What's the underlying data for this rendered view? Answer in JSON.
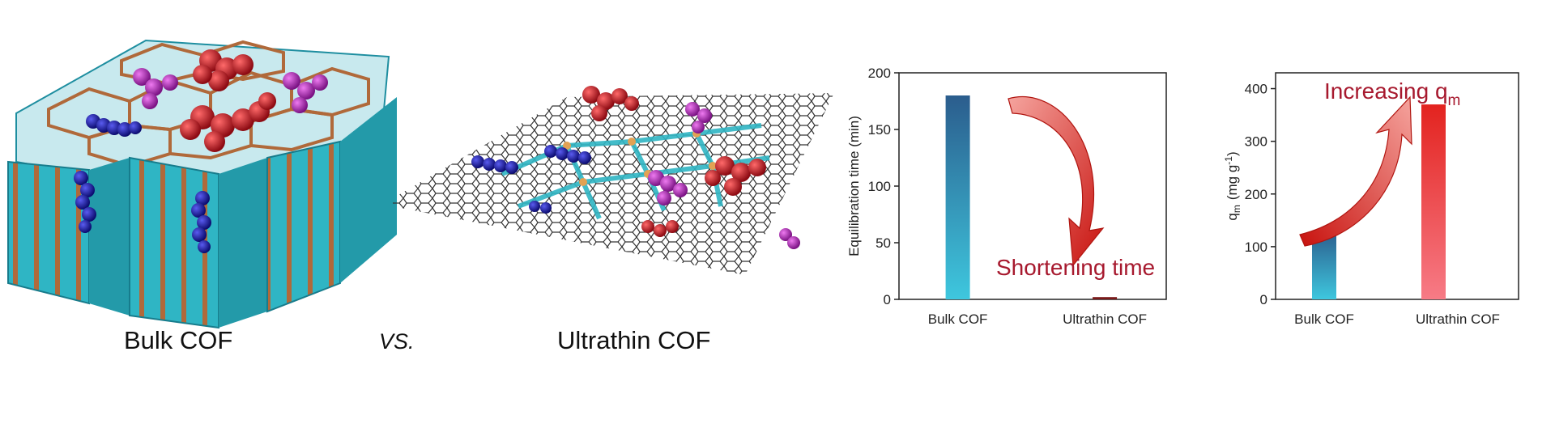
{
  "captions": {
    "bulk": "Bulk COF",
    "vs": "VS.",
    "ultrathin": "Ultrathin COF"
  },
  "colors": {
    "wall_cyan": "#2fb5c4",
    "wall_brown": "#b0693a",
    "sphere_red": "#b3121c",
    "sphere_purple": "#a11ea5",
    "sphere_blue": "#15159a",
    "arrow_red": "#d2231c",
    "annotation_text": "#a7192e",
    "bar_blue_top": "#2b5d8d",
    "bar_blue_bottom": "#3ec7de",
    "bar_red_top": "#e3231f",
    "bar_red_bottom": "#f77b86"
  },
  "icons": [
    "bulk-cof-structure-illustration",
    "ultrathin-cof-sheet-illustration",
    "curved-arrow"
  ],
  "chart_data": [
    {
      "type": "bar",
      "categories": [
        "Bulk COF",
        "Ultrathin COF"
      ],
      "values": [
        180,
        2
      ],
      "ylabel": "Equilibration time (min)",
      "xlabel": "",
      "ylim": [
        0,
        200
      ],
      "yticks": [
        0,
        50,
        100,
        150,
        200
      ],
      "annotation": "Shortening time",
      "arrow": "down"
    },
    {
      "type": "bar",
      "categories": [
        "Bulk COF",
        "Ultrathin COF"
      ],
      "values": [
        130,
        370
      ],
      "ylabel": "q",
      "ylabel_sub": "m",
      "ylabel_unit": "(mg g",
      "ylabel_unit_sup": "-1",
      "ylabel_unit_close": ")",
      "xlabel": "",
      "ylim": [
        0,
        430
      ],
      "yticks": [
        0,
        100,
        200,
        300,
        400
      ],
      "annotation": "Increasing q",
      "annotation_sub": "m",
      "arrow": "up"
    }
  ]
}
